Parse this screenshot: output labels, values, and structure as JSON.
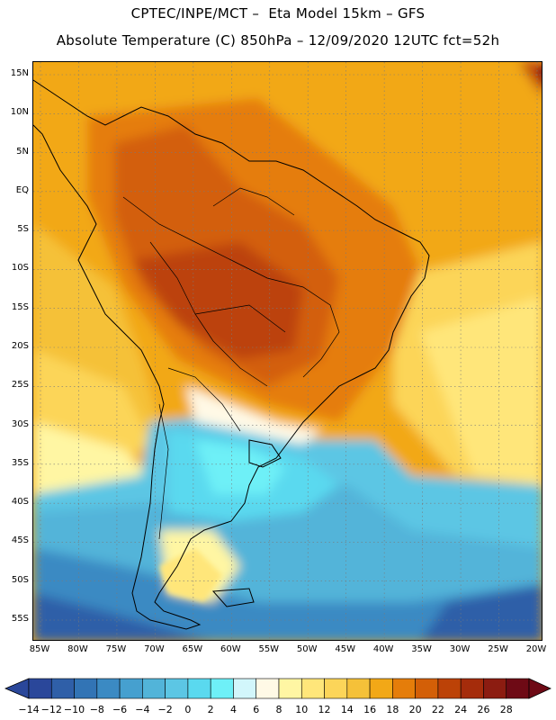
{
  "title": {
    "line1": "CPTEC/INPE/MCT –  Eta Model 15km – GFS",
    "line2": "Absolute Temperature (C) 850hPa – 12/09/2020 12UTC fct=52h"
  },
  "map": {
    "lat_labels": [
      "15N",
      "10N",
      "5N",
      "EQ",
      "5S",
      "10S",
      "15S",
      "20S",
      "25S",
      "30S",
      "35S",
      "40S",
      "45S",
      "50S",
      "55S"
    ],
    "lon_labels": [
      "85W",
      "80W",
      "75W",
      "70W",
      "65W",
      "60W",
      "55W",
      "50W",
      "45W",
      "40W",
      "35W",
      "30W",
      "25W",
      "20W"
    ],
    "lat_range": [
      15,
      -55
    ],
    "lon_range": [
      -85,
      -20
    ]
  },
  "colorbar": {
    "labels": [
      "-14",
      "-12",
      "-10",
      "-8",
      "-6",
      "-4",
      "-2",
      "0",
      "2",
      "4",
      "6",
      "8",
      "10",
      "12",
      "14",
      "16",
      "18",
      "20",
      "22",
      "24",
      "26",
      "28"
    ],
    "colors": [
      "#2a479a",
      "#2f5fa8",
      "#3274b5",
      "#3b8ac3",
      "#46a0cf",
      "#52b4d9",
      "#5cc6e4",
      "#5ad9ef",
      "#6ef0f7",
      "#d2f6fb",
      "#fff9e6",
      "#fff6a3",
      "#ffe67a",
      "#fcd559",
      "#f5c139",
      "#f2a817",
      "#e57d0a",
      "#d35f07",
      "#bc4207",
      "#a52c0b",
      "#8c1c11",
      "#6e0a15"
    ]
  }
}
